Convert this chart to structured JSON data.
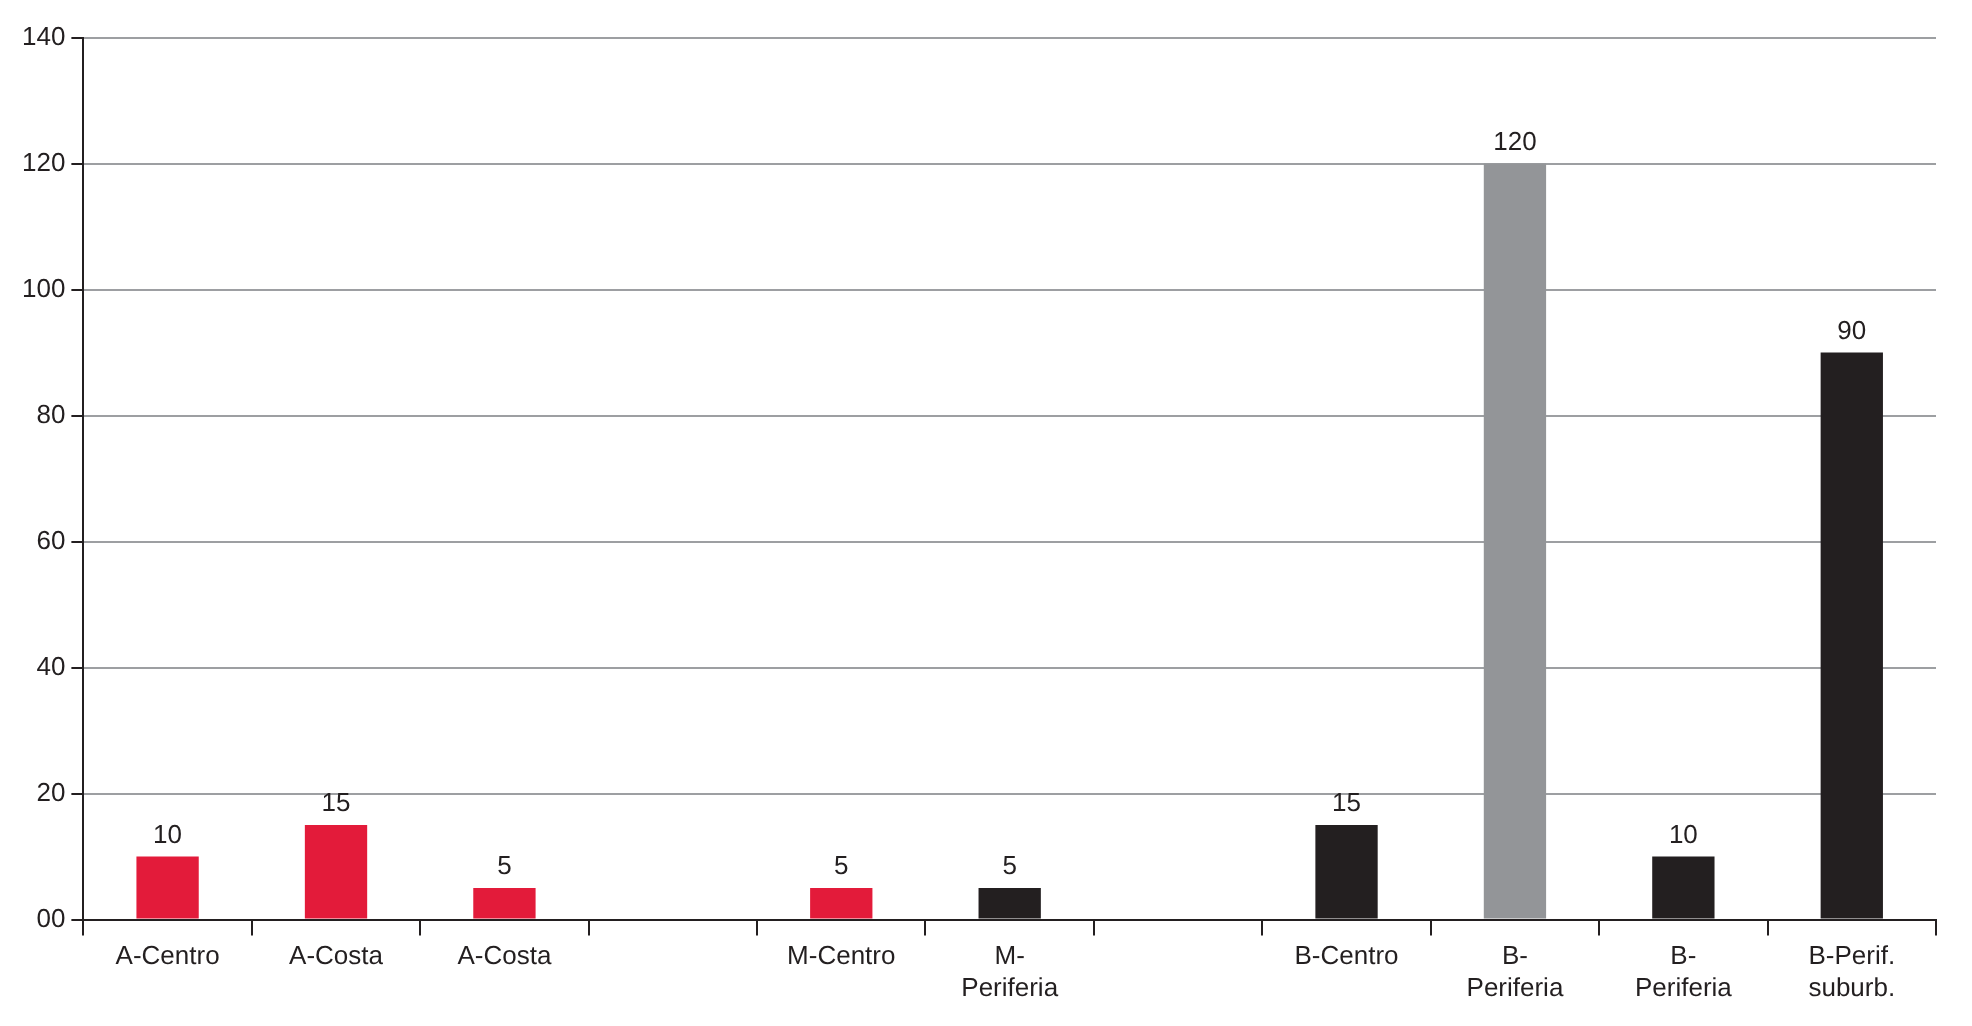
{
  "chart_data": {
    "type": "bar",
    "categories": [
      "A-Centro",
      "A-Costa",
      "A-Costa",
      null,
      "M-Centro",
      "M-Periferia",
      null,
      "B-Centro",
      "B-Periferia",
      "B-Periferia",
      "B-Perif. suburb."
    ],
    "values": [
      10,
      15,
      5,
      null,
      5,
      5,
      null,
      15,
      120,
      10,
      90
    ],
    "colors": [
      "#e31b3a",
      "#e31b3a",
      "#e31b3a",
      "#e31b3a",
      "#e31b3a",
      "#231f20",
      "#231f20",
      "#231f20",
      "#939598",
      "#231f20",
      "#231f20"
    ],
    "ylim": [
      0,
      140
    ],
    "yticks": [
      {
        "value": 0,
        "label": "00"
      },
      20,
      40,
      60,
      80,
      100,
      120,
      140
    ],
    "grid": "y",
    "data_labels": true,
    "legend": false
  }
}
